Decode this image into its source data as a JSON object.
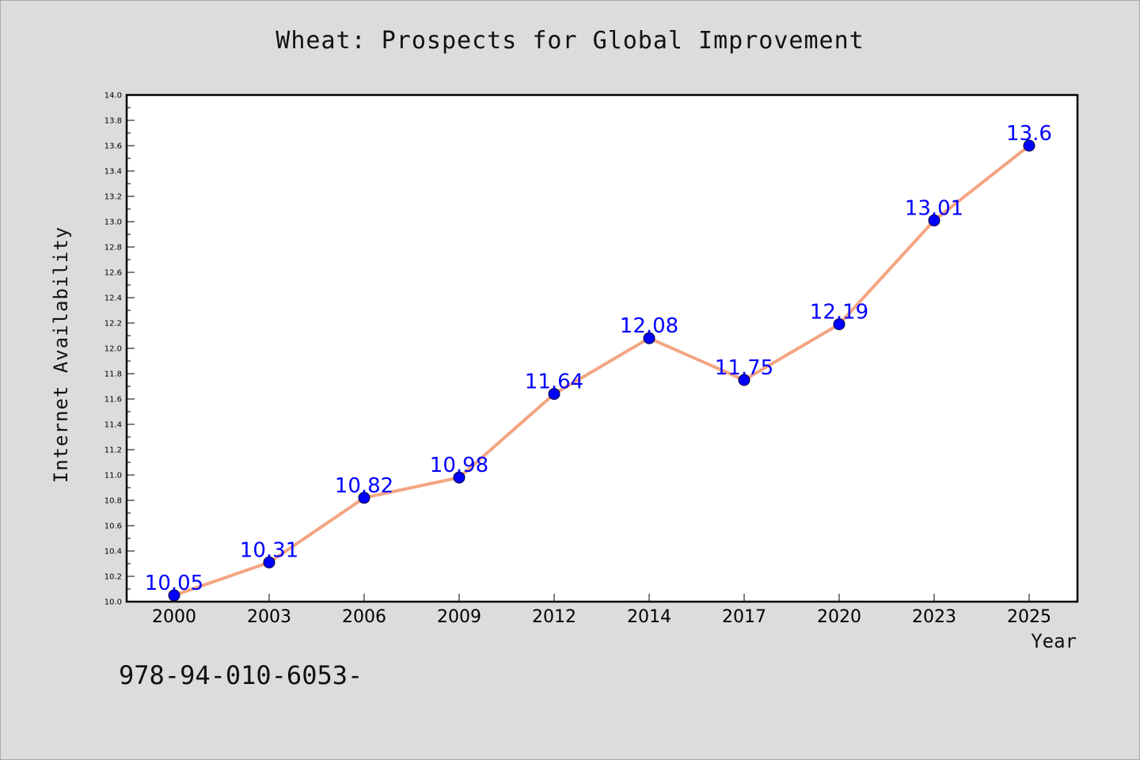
{
  "chart_data": {
    "type": "line",
    "title": "Wheat: Prospects for Global Improvement",
    "xlabel": "Year",
    "ylabel": "Internet Availability",
    "categories": [
      "2000",
      "2003",
      "2006",
      "2009",
      "2012",
      "2014",
      "2017",
      "2020",
      "2023",
      "2025"
    ],
    "series": [
      {
        "values": [
          10.05,
          10.31,
          10.82,
          10.98,
          11.64,
          12.08,
          11.75,
          12.19,
          13.01,
          13.6
        ],
        "labels": [
          "10.05",
          "10.31",
          "10.82",
          "10.98",
          "11.64",
          "12.08",
          "11.75",
          "12.19",
          "13.01",
          "13.6"
        ]
      }
    ],
    "ylim": [
      10.0,
      14.0
    ],
    "yticks": [
      "10.0",
      "10.2",
      "10.4",
      "10.6",
      "10.8",
      "11.0",
      "11.2",
      "11.4",
      "11.6",
      "11.8",
      "12.0",
      "12.2",
      "12.4",
      "12.6",
      "12.8",
      "13.0",
      "13.2",
      "13.4",
      "13.6",
      "13.8",
      "14.0"
    ],
    "grid": false,
    "legend": "none",
    "line_color": "#f4a582",
    "marker_color": "#0000ff",
    "label_color": "#0000ff"
  },
  "footer": {
    "note": "978-94-010-6053-"
  }
}
